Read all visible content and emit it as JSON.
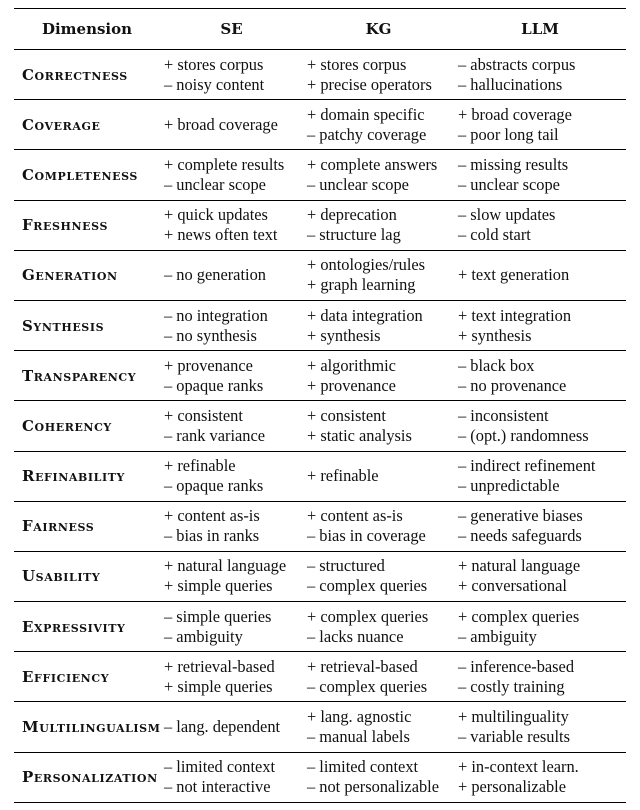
{
  "headers": [
    "Dimension",
    "SE",
    "KG",
    "LLM"
  ],
  "rows": [
    {
      "dim": "Correctness",
      "se": [
        "+ stores corpus",
        "– noisy content"
      ],
      "kg": [
        "+ stores corpus",
        "+ precise operators"
      ],
      "llm": [
        "– abstracts corpus",
        "– hallucinations"
      ]
    },
    {
      "dim": "Coverage",
      "se": [
        "+ broad coverage"
      ],
      "kg": [
        "+ domain specific",
        "– patchy coverage"
      ],
      "llm": [
        "+ broad coverage",
        "– poor long tail"
      ]
    },
    {
      "dim": "Completeness",
      "se": [
        "+ complete results",
        "– unclear scope"
      ],
      "kg": [
        "+ complete answers",
        "– unclear scope"
      ],
      "llm": [
        "– missing results",
        "– unclear scope"
      ]
    },
    {
      "dim": "Freshness",
      "se": [
        "+ quick updates",
        "+ news often text"
      ],
      "kg": [
        "+ deprecation",
        "– structure lag"
      ],
      "llm": [
        "– slow updates",
        "– cold start"
      ]
    },
    {
      "dim": "Generation",
      "se": [
        "– no generation"
      ],
      "kg": [
        "+ ontologies/rules",
        "+ graph learning"
      ],
      "llm": [
        "+ text generation"
      ]
    },
    {
      "dim": "Synthesis",
      "se": [
        "– no integration",
        "– no synthesis"
      ],
      "kg": [
        "+ data integration",
        "+ synthesis"
      ],
      "llm": [
        "+ text integration",
        "+ synthesis"
      ]
    },
    {
      "dim": "Transparency",
      "se": [
        "+ provenance",
        "– opaque ranks"
      ],
      "kg": [
        "+ algorithmic",
        "+ provenance"
      ],
      "llm": [
        "– black box",
        "– no provenance"
      ]
    },
    {
      "dim": "Coherency",
      "se": [
        "+ consistent",
        "– rank variance"
      ],
      "kg": [
        "+ consistent",
        "+ static analysis"
      ],
      "llm": [
        "– inconsistent",
        "– (opt.) randomness"
      ]
    },
    {
      "dim": "Refinability",
      "se": [
        "+ refinable",
        "– opaque ranks"
      ],
      "kg": [
        "+ refinable"
      ],
      "llm": [
        "– indirect refinement",
        "– unpredictable"
      ]
    },
    {
      "dim": "Fairness",
      "se": [
        "+ content as-is",
        "– bias in ranks"
      ],
      "kg": [
        "+ content as-is",
        "– bias in coverage"
      ],
      "llm": [
        "– generative biases",
        "– needs safeguards"
      ]
    },
    {
      "dim": "Usability",
      "se": [
        "+ natural language",
        "+ simple queries"
      ],
      "kg": [
        "– structured",
        "– complex queries"
      ],
      "llm": [
        "+ natural language",
        "+ conversational"
      ]
    },
    {
      "dim": "Expressivity",
      "se": [
        "– simple queries",
        "– ambiguity"
      ],
      "kg": [
        "+ complex queries",
        "– lacks nuance"
      ],
      "llm": [
        "+ complex queries",
        "– ambiguity"
      ]
    },
    {
      "dim": "Efficiency",
      "se": [
        "+ retrieval-based",
        "+ simple queries"
      ],
      "kg": [
        "+ retrieval-based",
        "– complex queries"
      ],
      "llm": [
        "– inference-based",
        "– costly training"
      ]
    },
    {
      "dim": "Multilingualism",
      "se": [
        "– lang. dependent"
      ],
      "kg": [
        "+ lang. agnostic",
        "– manual labels"
      ],
      "llm": [
        "+ multilinguality",
        "– variable results"
      ]
    },
    {
      "dim": "Personalization",
      "se": [
        "– limited context",
        "– not interactive"
      ],
      "kg": [
        "– limited context",
        "– not personalizable"
      ],
      "llm": [
        "+ in-context learn.",
        "+ personalizable"
      ]
    }
  ]
}
